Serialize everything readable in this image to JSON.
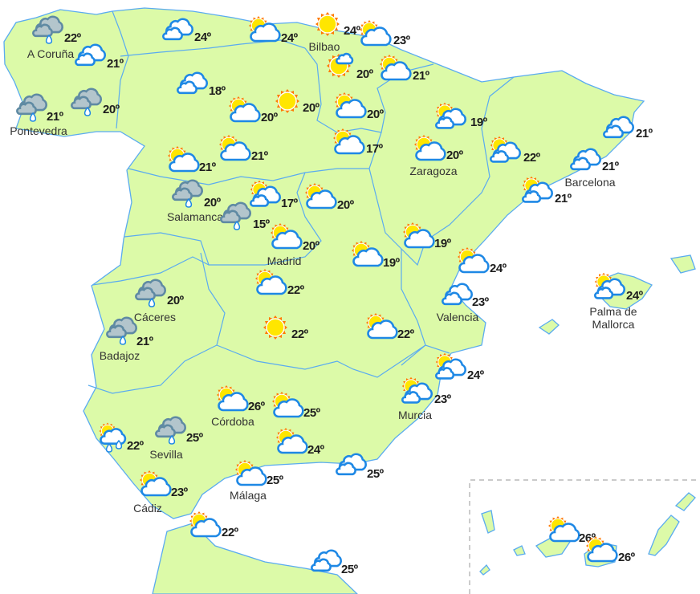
{
  "colors": {
    "land": "#dcfaa8",
    "border": "#5aabf0",
    "sea": "#ffffff",
    "temperature_text": "#1d1d1d",
    "sun": "#ffe600",
    "sun_rays": "#ff7a00",
    "cloud_stroke": "#1e88e5",
    "rain_cloud": "#b3c5cc"
  },
  "icon_types": {
    "rain": "rain-cloud-icon",
    "cloudy": "cloudy-icon",
    "partly": "partly-cloudy-icon",
    "partly2": "sun-with-clouds-icon",
    "sunny": "sun-icon",
    "suncloud": "sun-small-cloud-icon",
    "sunshowers": "sun-showers-icon"
  },
  "forecasts": [
    {
      "city": "A Coruña",
      "temp": "22º",
      "icon": "rain"
    },
    {
      "city": "",
      "temp": "21º",
      "icon": "cloudy"
    },
    {
      "city": "",
      "temp": "24º",
      "icon": "cloudy"
    },
    {
      "city": "",
      "temp": "24º",
      "icon": "partly"
    },
    {
      "city": "Bilbao",
      "temp": "24º",
      "icon": "sunny"
    },
    {
      "city": "",
      "temp": "23º",
      "icon": "partly"
    },
    {
      "city": "",
      "temp": "20º",
      "icon": "suncloud"
    },
    {
      "city": "",
      "temp": "21º",
      "icon": "partly"
    },
    {
      "city": "Pontevedra",
      "temp": "21º",
      "icon": "rain"
    },
    {
      "city": "",
      "temp": "20º",
      "icon": "rain"
    },
    {
      "city": "",
      "temp": "18º",
      "icon": "cloudy"
    },
    {
      "city": "",
      "temp": "20º",
      "icon": "partly"
    },
    {
      "city": "",
      "temp": "20º",
      "icon": "sunny"
    },
    {
      "city": "",
      "temp": "20º",
      "icon": "partly"
    },
    {
      "city": "",
      "temp": "19º",
      "icon": "partly2"
    },
    {
      "city": "",
      "temp": "21º",
      "icon": "cloudy"
    },
    {
      "city": "",
      "temp": "21º",
      "icon": "partly"
    },
    {
      "city": "",
      "temp": "21º",
      "icon": "partly"
    },
    {
      "city": "",
      "temp": "17º",
      "icon": "partly"
    },
    {
      "city": "Zaragoza",
      "temp": "20º",
      "icon": "partly"
    },
    {
      "city": "",
      "temp": "22º",
      "icon": "partly2"
    },
    {
      "city": "Barcelona",
      "temp": "21º",
      "icon": "cloudy"
    },
    {
      "city": "",
      "temp": "21º",
      "icon": "partly2"
    },
    {
      "city": "Salamanca",
      "temp": "20º",
      "icon": "rain"
    },
    {
      "city": "",
      "temp": "15º",
      "icon": "rain"
    },
    {
      "city": "",
      "temp": "17º",
      "icon": "partly2"
    },
    {
      "city": "",
      "temp": "20º",
      "icon": "partly"
    },
    {
      "city": "Madrid",
      "temp": "20º",
      "icon": "partly"
    },
    {
      "city": "",
      "temp": "19º",
      "icon": "partly"
    },
    {
      "city": "",
      "temp": "19º",
      "icon": "partly"
    },
    {
      "city": "",
      "temp": "24º",
      "icon": "partly"
    },
    {
      "city": "Valencia",
      "temp": "23º",
      "icon": "cloudy"
    },
    {
      "city": "Palma de Mallorca",
      "temp": "24º",
      "icon": "partly2"
    },
    {
      "city": "",
      "temp": "22º",
      "icon": "partly"
    },
    {
      "city": "Cáceres",
      "temp": "20º",
      "icon": "rain"
    },
    {
      "city": "",
      "temp": "22º",
      "icon": "sunny"
    },
    {
      "city": "",
      "temp": "22º",
      "icon": "partly"
    },
    {
      "city": "Badajoz",
      "temp": "21º",
      "icon": "rain"
    },
    {
      "city": "",
      "temp": "24º",
      "icon": "partly2"
    },
    {
      "city": "Murcia",
      "temp": "23º",
      "icon": "partly2"
    },
    {
      "city": "Córdoba",
      "temp": "26º",
      "icon": "partly"
    },
    {
      "city": "",
      "temp": "25º",
      "icon": "partly"
    },
    {
      "city": "",
      "temp": "24º",
      "icon": "partly"
    },
    {
      "city": "",
      "temp": "22º",
      "icon": "sunshowers"
    },
    {
      "city": "Sevilla",
      "temp": "25º",
      "icon": "rain"
    },
    {
      "city": "",
      "temp": "25º",
      "icon": "cloudy"
    },
    {
      "city": "Málaga",
      "temp": "25º",
      "icon": "partly"
    },
    {
      "city": "Cádiz",
      "temp": "23º",
      "icon": "partly"
    },
    {
      "city": "",
      "temp": "22º",
      "icon": "partly"
    },
    {
      "city": "",
      "temp": "25º",
      "icon": "cloudy"
    },
    {
      "city": "",
      "temp": "26º",
      "icon": "partly"
    },
    {
      "city": "",
      "temp": "26º",
      "icon": "partly"
    }
  ]
}
